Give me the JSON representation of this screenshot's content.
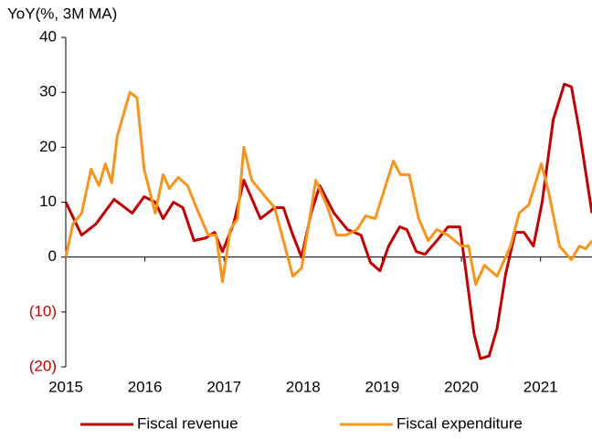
{
  "chart_data": {
    "type": "line",
    "y_label": "YoY(%, 3M MA)",
    "xlim": [
      2015,
      2021.65
    ],
    "xticks": [
      2015,
      2016,
      2017,
      2018,
      2019,
      2020,
      2021
    ],
    "ylim": [
      -20,
      40
    ],
    "yticks": [
      {
        "value": -20,
        "label": "(20)"
      },
      {
        "value": -10,
        "label": "(10)"
      },
      0,
      10,
      20,
      30,
      40
    ],
    "negative_tick_color": "#c00000",
    "grid": false,
    "legend": "bottom",
    "series": [
      {
        "name": "Fiscal revenue",
        "color": "#c00000",
        "x": [
          2015.0,
          2015.2,
          2015.38,
          2015.61,
          2015.84,
          2015.99,
          2016.13,
          2016.23,
          2016.36,
          2016.48,
          2016.62,
          2016.77,
          2016.88,
          2016.98,
          2017.12,
          2017.25,
          2017.46,
          2017.64,
          2017.75,
          2017.87,
          2017.98,
          2018.1,
          2018.21,
          2018.39,
          2018.56,
          2018.73,
          2018.85,
          2018.97,
          2019.08,
          2019.22,
          2019.31,
          2019.43,
          2019.54,
          2019.69,
          2019.83,
          2019.98,
          2020.06,
          2020.16,
          2020.24,
          2020.35,
          2020.45,
          2020.56,
          2020.68,
          2020.79,
          2020.91,
          2021.02,
          2021.16,
          2021.3,
          2021.39,
          2021.49,
          2021.65
        ],
        "values": [
          10,
          4,
          6,
          10.5,
          8,
          11,
          10,
          7,
          10,
          9,
          3,
          3.5,
          4.5,
          1,
          6,
          14,
          7,
          9,
          9,
          4,
          0,
          8,
          13,
          8,
          5,
          4,
          -1,
          -2.5,
          2,
          5.5,
          5,
          1,
          0.5,
          3,
          5.5,
          5.5,
          -3,
          -14,
          -18.5,
          -18,
          -13,
          -3,
          4.5,
          4.5,
          2,
          10,
          25,
          31.5,
          31,
          23,
          8
        ]
      },
      {
        "name": "Fiscal expenditure",
        "color": "#f7941d",
        "x": [
          2015.0,
          2015.09,
          2015.2,
          2015.32,
          2015.42,
          2015.5,
          2015.58,
          2015.65,
          2015.81,
          2015.9,
          2015.99,
          2016.13,
          2016.23,
          2016.31,
          2016.42,
          2016.54,
          2016.65,
          2016.8,
          2016.9,
          2016.98,
          2017.08,
          2017.17,
          2017.25,
          2017.35,
          2017.52,
          2017.64,
          2017.75,
          2017.87,
          2017.98,
          2018.16,
          2018.31,
          2018.42,
          2018.54,
          2018.68,
          2018.79,
          2018.91,
          2019.02,
          2019.14,
          2019.23,
          2019.34,
          2019.46,
          2019.58,
          2019.69,
          2019.83,
          2020.0,
          2020.09,
          2020.18,
          2020.29,
          2020.45,
          2020.62,
          2020.73,
          2020.85,
          2021.01,
          2021.1,
          2021.24,
          2021.39,
          2021.49,
          2021.57,
          2021.65
        ],
        "values": [
          0,
          6,
          8,
          16,
          13,
          17,
          13.5,
          22,
          30,
          29,
          16,
          8,
          15,
          12.5,
          14.5,
          13,
          9,
          4,
          4,
          -4.5,
          5,
          7,
          20,
          14,
          11,
          9,
          3,
          -3.5,
          -2,
          14,
          9,
          4,
          4,
          5,
          7.5,
          7,
          12,
          17.5,
          15,
          15,
          7,
          3,
          5,
          4,
          2,
          2,
          -5,
          -1.5,
          -3.5,
          2,
          8,
          9.5,
          17,
          12,
          2,
          -0.5,
          2,
          1.5,
          3
        ]
      }
    ]
  }
}
